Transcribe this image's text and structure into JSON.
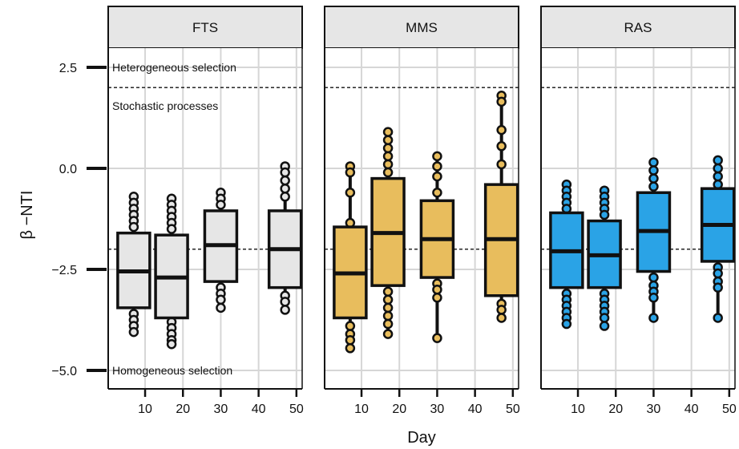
{
  "chart_data": {
    "type": "box",
    "xlabel": "Day",
    "ylabel": "β −NTI",
    "xlim": [
      3,
      52
    ],
    "ylim": [
      -5.3,
      2.8
    ],
    "x_ticks": [
      10,
      20,
      30,
      40,
      50
    ],
    "y_ticks": [
      2.5,
      0.0,
      -2.5,
      -5.0
    ],
    "y_tick_labels": [
      "2.5",
      "0.0",
      "−2.5",
      "−5.0"
    ],
    "reference_lines": [
      2,
      -2
    ],
    "annotations": [
      {
        "text": "Heterogeneous selection",
        "x": 4,
        "y": 2.5
      },
      {
        "text": "Stochastic processes",
        "x": 4,
        "y": 1.55
      },
      {
        "text": "Homogeneous selection",
        "x": 4,
        "y": -5.0
      }
    ],
    "panels": [
      {
        "title": "FTS",
        "fill": "#e6e6e6",
        "point_color": "#e6e6e6",
        "boxes": [
          {
            "day": 7,
            "q1": -3.45,
            "median": -2.55,
            "q3": -1.6,
            "whisker_low": -4.1,
            "whisker_high": -0.65,
            "outliers": [
              -0.7,
              -0.85,
              -1.0,
              -1.15,
              -1.3,
              -1.45,
              -3.6,
              -3.75,
              -3.9,
              -4.05
            ]
          },
          {
            "day": 17,
            "q1": -3.7,
            "median": -2.7,
            "q3": -1.65,
            "whisker_low": -4.35,
            "whisker_high": -0.7,
            "outliers": [
              -0.75,
              -0.9,
              -1.05,
              -1.2,
              -1.35,
              -1.5,
              -3.8,
              -3.95,
              -4.1,
              -4.25,
              -4.35
            ]
          },
          {
            "day": 30,
            "q1": -2.8,
            "median": -1.9,
            "q3": -1.05,
            "whisker_low": -3.5,
            "whisker_high": -0.55,
            "outliers": [
              -0.6,
              -0.75,
              -0.9,
              -2.95,
              -3.1,
              -3.25,
              -3.45
            ]
          },
          {
            "day": 47,
            "q1": -2.95,
            "median": -2.0,
            "q3": -1.05,
            "whisker_low": -3.55,
            "whisker_high": 0.1,
            "outliers": [
              0.05,
              -0.1,
              -0.3,
              -0.5,
              -0.7,
              -3.15,
              -3.3,
              -3.5
            ]
          }
        ]
      },
      {
        "title": "MMS",
        "fill": "#e8bd5d",
        "point_color": "#e8bd5d",
        "boxes": [
          {
            "day": 7,
            "q1": -3.7,
            "median": -2.6,
            "q3": -1.45,
            "whisker_low": -4.45,
            "whisker_high": 0.1,
            "outliers": [
              0.05,
              -0.1,
              -0.6,
              -1.35,
              -3.9,
              -4.1,
              -4.25,
              -4.45
            ]
          },
          {
            "day": 17,
            "q1": -2.9,
            "median": -1.6,
            "q3": -0.25,
            "whisker_low": -4.15,
            "whisker_high": 0.95,
            "outliers": [
              0.9,
              0.7,
              0.5,
              0.3,
              0.1,
              -0.1,
              -3.05,
              -3.25,
              -3.45,
              -3.65,
              -3.85,
              -4.1
            ]
          },
          {
            "day": 30,
            "q1": -2.7,
            "median": -1.75,
            "q3": -0.8,
            "whisker_low": -4.25,
            "whisker_high": 0.3,
            "outliers": [
              0.3,
              0.05,
              -0.2,
              -0.6,
              -2.85,
              -3.0,
              -3.2,
              -4.2
            ]
          },
          {
            "day": 47,
            "q1": -3.15,
            "median": -1.75,
            "q3": -0.4,
            "whisker_low": -3.7,
            "whisker_high": 1.8,
            "outliers": [
              1.8,
              1.65,
              0.95,
              0.55,
              0.1,
              -3.35,
              -3.5,
              -3.7
            ]
          }
        ]
      },
      {
        "title": "RAS",
        "fill": "#2aa3e6",
        "point_color": "#2aa3e6",
        "boxes": [
          {
            "day": 7,
            "q1": -2.95,
            "median": -2.05,
            "q3": -1.1,
            "whisker_low": -3.85,
            "whisker_high": -0.4,
            "outliers": [
              -0.4,
              -0.55,
              -0.7,
              -0.85,
              -1.0,
              -3.1,
              -3.25,
              -3.4,
              -3.55,
              -3.7,
              -3.85
            ]
          },
          {
            "day": 17,
            "q1": -2.95,
            "median": -2.15,
            "q3": -1.3,
            "whisker_low": -3.95,
            "whisker_high": -0.55,
            "outliers": [
              -0.55,
              -0.7,
              -0.85,
              -1.0,
              -1.15,
              -3.1,
              -3.25,
              -3.4,
              -3.55,
              -3.7,
              -3.9
            ]
          },
          {
            "day": 30,
            "q1": -2.55,
            "median": -1.55,
            "q3": -0.6,
            "whisker_low": -3.7,
            "whisker_high": 0.15,
            "outliers": [
              0.15,
              -0.05,
              -0.25,
              -0.45,
              -2.7,
              -2.9,
              -3.05,
              -3.2,
              -3.7
            ]
          },
          {
            "day": 47,
            "q1": -2.3,
            "median": -1.4,
            "q3": -0.5,
            "whisker_low": -3.7,
            "whisker_high": 0.25,
            "outliers": [
              0.2,
              0.0,
              -0.2,
              -0.4,
              -2.45,
              -2.6,
              -2.8,
              -2.95,
              -3.7
            ]
          }
        ]
      }
    ]
  }
}
